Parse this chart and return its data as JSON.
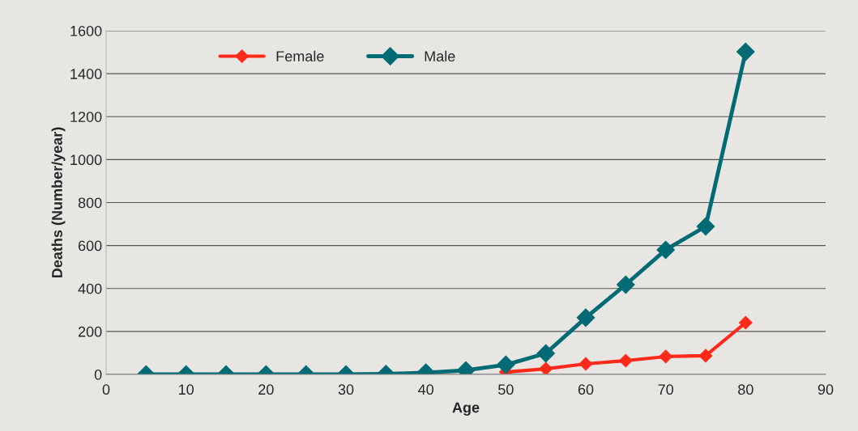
{
  "chart_data": {
    "type": "line",
    "xlabel": "Age",
    "ylabel": "Deaths (Number/year)",
    "x": [
      5,
      10,
      15,
      20,
      25,
      30,
      35,
      40,
      45,
      50,
      55,
      60,
      65,
      70,
      75,
      80
    ],
    "series": [
      {
        "name": "Female",
        "color": "#ff2a1a",
        "marker": "diamond",
        "values": [
          null,
          null,
          null,
          null,
          null,
          null,
          null,
          null,
          null,
          11,
          26,
          49,
          64,
          83,
          87,
          241
        ]
      },
      {
        "name": "Male",
        "color": "#006b74",
        "marker": "diamond",
        "values": [
          0,
          0,
          0,
          0,
          0,
          0,
          2,
          8,
          19,
          45,
          98,
          264,
          418,
          580,
          689,
          1502
        ]
      }
    ],
    "xlim": [
      0,
      90
    ],
    "xticks": [
      0,
      10,
      20,
      30,
      40,
      50,
      60,
      70,
      80,
      90
    ],
    "ylim": [
      0,
      1600
    ],
    "yticks": [
      0,
      200,
      400,
      600,
      800,
      1000,
      1200,
      1400,
      1600
    ],
    "grid": "y",
    "legend": "top left",
    "line_style": "solid"
  }
}
